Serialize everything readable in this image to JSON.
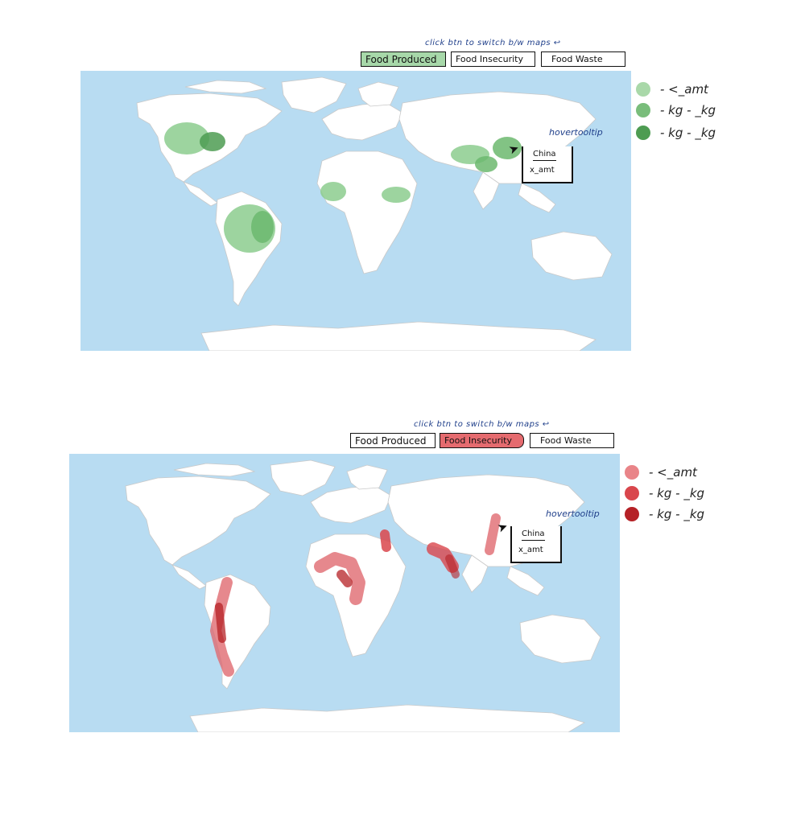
{
  "top": {
    "hint": "click btn to switch b/w maps ↩",
    "buttons": {
      "food_produced": "Food Produced",
      "food_insecurity": "Food Insecurity",
      "food_waste": "Food Waste"
    },
    "active": "food_produced",
    "legend": [
      {
        "label": "- <_amt",
        "color": "#a9d8a9"
      },
      {
        "label": "- kg - _kg",
        "color": "#79bd7b"
      },
      {
        "label": "- kg - _kg",
        "color": "#4e9c52"
      }
    ],
    "tooltip": {
      "label": "hovertooltip",
      "country": "China",
      "value": "x_amt"
    },
    "regions": [
      "United States",
      "Brazil",
      "West Africa",
      "Ethiopia",
      "Central Asia",
      "China"
    ]
  },
  "bottom": {
    "hint": "click btn to switch b/w maps ↩",
    "buttons": {
      "food_produced": "Food Produced",
      "food_insecurity": "Food Insecurity",
      "food_waste": "Food Waste"
    },
    "active": "food_insecurity",
    "legend": [
      {
        "label": "- <_amt",
        "color": "#e98488"
      },
      {
        "label": "- kg - _kg",
        "color": "#d9464c"
      },
      {
        "label": "- kg - _kg",
        "color": "#b52126"
      }
    ],
    "tooltip": {
      "label": "hovertooltip",
      "country": "China",
      "value": "x_amt"
    },
    "regions": [
      "Andes",
      "Chile",
      "West Africa",
      "Central Africa",
      "Egypt",
      "India",
      "China"
    ]
  },
  "colors": {
    "ocean": "#b8dcf2",
    "land": "#ffffff",
    "border": "#c9c9c9",
    "green": "#6cb86f",
    "red": "#d93a40"
  }
}
